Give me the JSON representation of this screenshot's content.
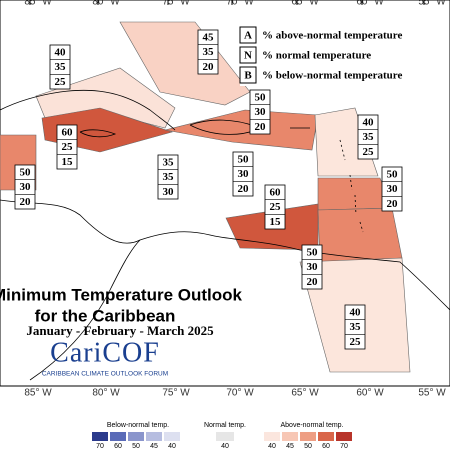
{
  "map": {
    "longitude_labels_top": [
      "85° W",
      "80° W",
      "75° W",
      "70° W",
      "65° W",
      "60° W",
      "55° W"
    ],
    "longitude_labels_bottom": [
      "85° W",
      "80° W",
      "75° W",
      "70° W",
      "65° W",
      "60° W",
      "55° W"
    ]
  },
  "legend": {
    "items": [
      {
        "key": "A",
        "text": "% above-normal temperature"
      },
      {
        "key": "N",
        "text": "% normal temperature"
      },
      {
        "key": "B",
        "text": "% below-normal temperature"
      }
    ]
  },
  "title": {
    "line1": "Minimum Temperature Outlook",
    "line2": "for the Caribbean",
    "period": "January - February - March 2025"
  },
  "logo": {
    "name": "CariCOF",
    "tagline": "CARIBBEAN CLIMATE OUTLOOK FORUM"
  },
  "forecasts": [
    {
      "above": 45,
      "normal": 35,
      "below": 20
    },
    {
      "above": 40,
      "normal": 35,
      "below": 25
    },
    {
      "above": 50,
      "normal": 30,
      "below": 20
    },
    {
      "above": 60,
      "normal": 25,
      "below": 15
    },
    {
      "above": 40,
      "normal": 35,
      "below": 25
    },
    {
      "above": 35,
      "normal": 35,
      "below": 30
    },
    {
      "above": 50,
      "normal": 30,
      "below": 20
    },
    {
      "above": 50,
      "normal": 30,
      "below": 20
    },
    {
      "above": 50,
      "normal": 30,
      "below": 20
    },
    {
      "above": 60,
      "normal": 25,
      "below": 15
    },
    {
      "above": 50,
      "normal": 30,
      "below": 20
    },
    {
      "above": 40,
      "normal": 35,
      "below": 25
    }
  ],
  "colorbar": {
    "below_title": "Below-normal temp.",
    "below_ticks": [
      70,
      60,
      50,
      45,
      40
    ],
    "normal_title": "Normal temp.",
    "normal_ticks": [
      40
    ],
    "above_title": "Above-normal temp.",
    "above_ticks": [
      40,
      45,
      50,
      60,
      70
    ]
  }
}
